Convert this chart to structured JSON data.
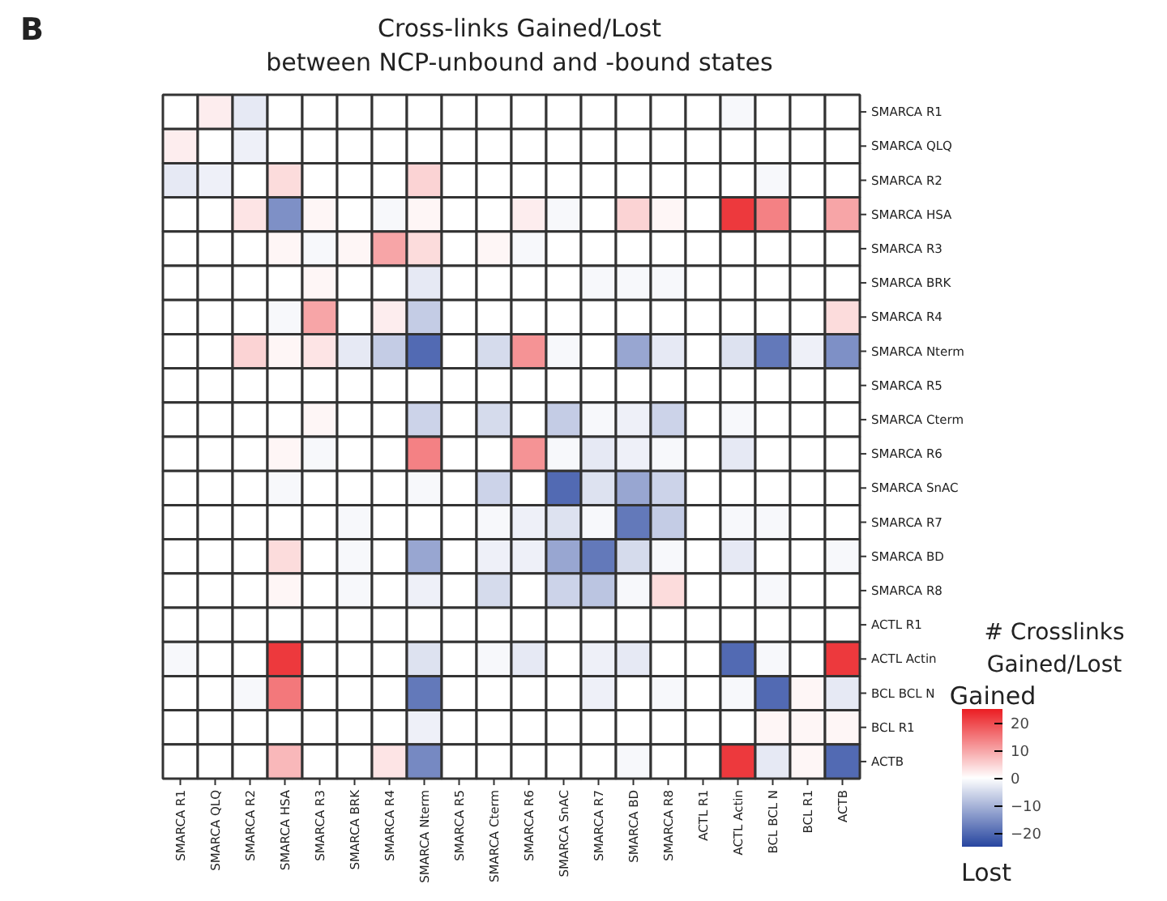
{
  "chart_data": {
    "type": "heatmap",
    "title": "Cross-links Gained/Lost\nbetween NCP-unbound and -bound states",
    "categories": [
      "SMARCA R1",
      "SMARCA QLQ",
      "SMARCA R2",
      "SMARCA HSA",
      "SMARCA R3",
      "SMARCA BRK",
      "SMARCA R4",
      "SMARCA Nterm",
      "SMARCA R5",
      "SMARCA Cterm",
      "SMARCA R6",
      "SMARCA SnAC",
      "SMARCA R7",
      "SMARCA BD",
      "SMARCA R8",
      "ACTL R1",
      "ACTL Actin",
      "BCL BCL N",
      "BCL R1",
      "ACTB"
    ],
    "y_categories": [
      "SMARCA R1",
      "SMARCA QLQ",
      "SMARCA R2",
      "SMARCA HSA",
      "SMARCA R3",
      "SMARCA BRK",
      "SMARCA R4",
      "SMARCA Nterm",
      "SMARCA R5",
      "SMARCA Cterm",
      "SMARCA R6",
      "SMARCA SnAC",
      "SMARCA R7",
      "SMARCA BD",
      "SMARCA R8",
      "ACTL R1",
      "ACTL Actin",
      "BCL BCL N",
      "BCL R1",
      "ACTB"
    ],
    "cells": [
      [
        0,
        2,
        -3,
        0,
        0,
        0,
        0,
        0,
        0,
        0,
        0,
        0,
        0,
        0,
        0,
        0,
        -1,
        0,
        0,
        0
      ],
      [
        2,
        0,
        -2,
        0,
        0,
        0,
        0,
        0,
        0,
        0,
        0,
        0,
        0,
        0,
        0,
        0,
        0,
        0,
        0,
        0
      ],
      [
        -3,
        -2,
        0,
        4,
        0,
        0,
        0,
        5,
        0,
        0,
        0,
        0,
        0,
        0,
        0,
        0,
        0,
        -1,
        0,
        0
      ],
      [
        0,
        0,
        3,
        -15,
        1,
        0,
        -1,
        1,
        0,
        0,
        2,
        -1,
        0,
        5,
        1,
        0,
        22,
        14,
        0,
        10
      ],
      [
        0,
        0,
        0,
        1,
        -1,
        1,
        10,
        4,
        0,
        1,
        -1,
        0,
        0,
        0,
        0,
        0,
        0,
        0,
        0,
        0
      ],
      [
        0,
        0,
        0,
        0,
        1,
        0,
        0,
        -3,
        0,
        0,
        0,
        0,
        -1,
        -1,
        -1,
        0,
        0,
        0,
        0,
        0
      ],
      [
        0,
        0,
        0,
        -1,
        10,
        0,
        2,
        -7,
        0,
        0,
        0,
        0,
        0,
        0,
        0,
        0,
        0,
        0,
        0,
        4
      ],
      [
        0,
        0,
        5,
        1,
        3,
        -3,
        -7,
        -20,
        0,
        -5,
        12,
        -1,
        0,
        -12,
        -3,
        0,
        -4,
        -18,
        -2,
        -15
      ],
      [
        0,
        0,
        0,
        0,
        0,
        0,
        0,
        0,
        0,
        0,
        0,
        0,
        0,
        0,
        0,
        0,
        0,
        0,
        0,
        0
      ],
      [
        0,
        0,
        0,
        0,
        1,
        0,
        0,
        -6,
        0,
        -5,
        0,
        -7,
        -1,
        -2,
        -6,
        0,
        -1,
        0,
        0,
        0
      ],
      [
        0,
        0,
        0,
        1,
        -1,
        0,
        0,
        14,
        0,
        0,
        12,
        -1,
        -3,
        -2,
        -1,
        0,
        -3,
        0,
        0,
        0
      ],
      [
        0,
        0,
        0,
        -1,
        0,
        0,
        0,
        -1,
        0,
        -6,
        0,
        -20,
        -4,
        -12,
        -6,
        0,
        0,
        0,
        0,
        0
      ],
      [
        0,
        0,
        0,
        0,
        0,
        -1,
        0,
        0,
        0,
        -1,
        -2,
        -4,
        -1,
        -18,
        -7,
        0,
        -1,
        -1,
        0,
        0
      ],
      [
        0,
        0,
        0,
        4,
        0,
        -1,
        0,
        -12,
        0,
        -2,
        -2,
        -12,
        -18,
        -5,
        -1,
        0,
        -3,
        0,
        0,
        -1
      ],
      [
        0,
        0,
        0,
        1,
        0,
        -1,
        0,
        -2,
        0,
        -5,
        0,
        -6,
        -8,
        -1,
        4,
        0,
        0,
        -1,
        0,
        0
      ],
      [
        0,
        0,
        0,
        0,
        0,
        0,
        0,
        0,
        0,
        0,
        0,
        0,
        0,
        0,
        0,
        0,
        0,
        0,
        0,
        0
      ],
      [
        -1,
        0,
        0,
        22,
        0,
        0,
        0,
        -4,
        0,
        -1,
        -3,
        0,
        -2,
        -3,
        0,
        0,
        -20,
        -1,
        0,
        22
      ],
      [
        0,
        0,
        -1,
        15,
        0,
        0,
        0,
        -18,
        0,
        0,
        0,
        0,
        -2,
        0,
        -1,
        0,
        -1,
        -20,
        1,
        -3
      ],
      [
        0,
        0,
        0,
        0,
        0,
        0,
        0,
        -2,
        0,
        0,
        0,
        0,
        0,
        0,
        0,
        0,
        0,
        1,
        1,
        1
      ],
      [
        0,
        0,
        0,
        8,
        0,
        0,
        3,
        -16,
        0,
        0,
        0,
        0,
        0,
        -1,
        0,
        0,
        22,
        -3,
        1,
        -20
      ]
    ],
    "clim": [
      -25,
      25
    ],
    "cticks": [
      -20,
      -10,
      0,
      10,
      20
    ],
    "clabel": "# Crosslinks\nGained/Lost",
    "annotations": [
      "B",
      "Gained",
      "Lost"
    ]
  }
}
